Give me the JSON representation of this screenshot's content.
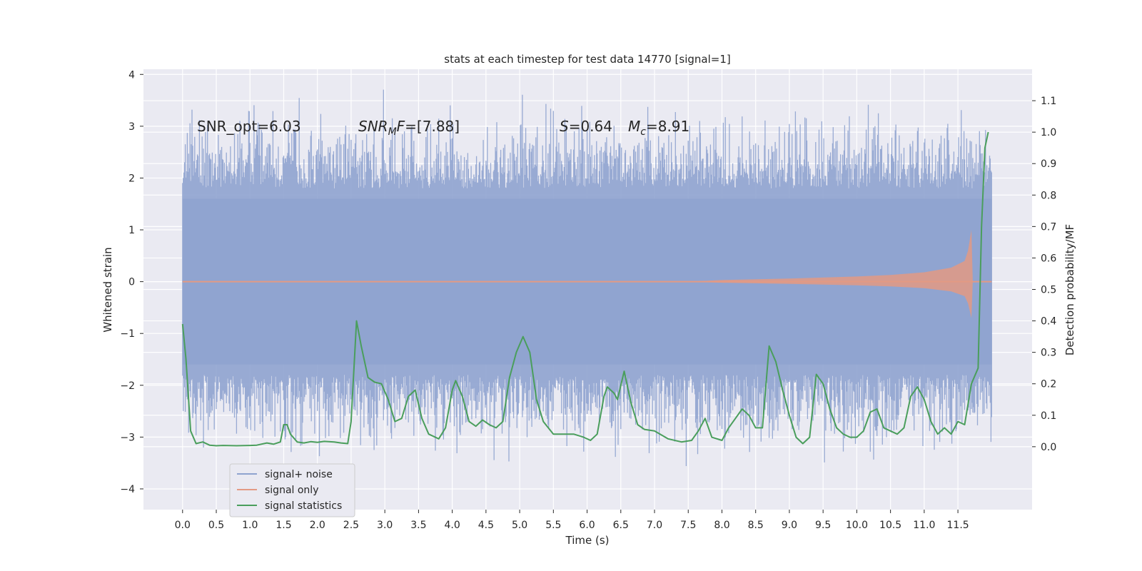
{
  "chart_data": {
    "type": "line",
    "title": "stats at each timestep for test data 14770 [signal=1]",
    "xlabel": "Time (s)",
    "ylabel_left": "Whitened strain",
    "ylabel_right": "Detection probability/MF",
    "xlim": [
      -0.58,
      12.6
    ],
    "ylim_left": [
      -4.4,
      4.1
    ],
    "ylim_right": [
      -0.2,
      1.2
    ],
    "grid": true,
    "legend_position": "lower-left",
    "x_ticks": [
      "0.0",
      "0.5",
      "1.0",
      "1.5",
      "2.0",
      "2.5",
      "3.0",
      "3.5",
      "4.0",
      "4.5",
      "5.0",
      "5.5",
      "6.0",
      "6.5",
      "7.0",
      "7.5",
      "8.0",
      "8.5",
      "9.0",
      "9.5",
      "10.0",
      "10.5",
      "11.0",
      "11.5"
    ],
    "y_left_ticks": [
      "4",
      "3",
      "2",
      "1",
      "0",
      "−1",
      "−2",
      "−3",
      "−4"
    ],
    "y_right_ticks": [
      "1.1",
      "1.0",
      "0.9",
      "0.8",
      "0.7",
      "0.6",
      "0.5",
      "0.4",
      "0.3",
      "0.2",
      "0.1",
      "0.0"
    ],
    "annotations": {
      "snr_opt": "SNR_opt=6.03",
      "snr_mf_symbol": "SNR",
      "snr_mf_sub": "M",
      "snr_mf_tail": "F",
      "snr_mf_value": "=[7.88]",
      "s_symbol": "S",
      "s_value": "=0.64",
      "mc_symbol": "M",
      "mc_sub": "c",
      "mc_value": "=8.91"
    },
    "series": [
      {
        "name": "signal+ noise",
        "color": "#8fa3cf",
        "axis": "left",
        "x_range": [
          0.0,
          12.0
        ],
        "envelope_note_values": {
          "typical_max": 2.2,
          "typical_min": -2.2,
          "peak_max": 3.75,
          "peak_min": -3.8
        }
      },
      {
        "name": "signal only",
        "color": "#e39a84",
        "axis": "left",
        "x_range": [
          0.0,
          12.0
        ],
        "envelope": {
          "t": [
            0.0,
            7.5,
            8.0,
            9.0,
            10.0,
            10.5,
            11.0,
            11.4,
            11.6,
            11.65,
            11.7,
            11.72,
            12.0
          ],
          "amp": [
            0.0,
            0.0,
            0.03,
            0.06,
            0.1,
            0.13,
            0.18,
            0.27,
            0.4,
            0.6,
            1.0,
            0.0,
            0.0
          ]
        }
      },
      {
        "name": "signal statistics",
        "color": "#4a9e5c",
        "axis": "right",
        "x": [
          0.0,
          0.05,
          0.12,
          0.2,
          0.3,
          0.4,
          0.5,
          0.6,
          0.8,
          1.0,
          1.1,
          1.25,
          1.35,
          1.45,
          1.5,
          1.55,
          1.6,
          1.7,
          1.8,
          1.9,
          2.0,
          2.1,
          2.25,
          2.35,
          2.45,
          2.5,
          2.58,
          2.65,
          2.75,
          2.85,
          2.95,
          3.05,
          3.15,
          3.25,
          3.35,
          3.45,
          3.55,
          3.65,
          3.8,
          3.9,
          4.0,
          4.05,
          4.15,
          4.25,
          4.35,
          4.45,
          4.55,
          4.65,
          4.75,
          4.85,
          4.95,
          5.05,
          5.15,
          5.25,
          5.35,
          5.5,
          5.65,
          5.8,
          5.95,
          6.05,
          6.15,
          6.25,
          6.3,
          6.4,
          6.45,
          6.55,
          6.65,
          6.75,
          6.85,
          7.0,
          7.2,
          7.4,
          7.55,
          7.65,
          7.75,
          7.85,
          8.0,
          8.1,
          8.2,
          8.3,
          8.4,
          8.5,
          8.6,
          8.7,
          8.8,
          8.9,
          9.0,
          9.1,
          9.2,
          9.3,
          9.4,
          9.5,
          9.6,
          9.7,
          9.8,
          9.9,
          10.0,
          10.1,
          10.2,
          10.3,
          10.4,
          10.5,
          10.6,
          10.7,
          10.8,
          10.9,
          11.0,
          11.1,
          11.2,
          11.3,
          11.4,
          11.5,
          11.6,
          11.7,
          11.8,
          11.85,
          11.9,
          11.95
        ],
        "y": [
          0.39,
          0.28,
          0.05,
          0.01,
          0.015,
          0.005,
          0.003,
          0.004,
          0.003,
          0.004,
          0.005,
          0.012,
          0.008,
          0.015,
          0.07,
          0.07,
          0.04,
          0.015,
          0.012,
          0.016,
          0.014,
          0.017,
          0.015,
          0.012,
          0.01,
          0.08,
          0.4,
          0.32,
          0.22,
          0.205,
          0.2,
          0.15,
          0.08,
          0.09,
          0.16,
          0.18,
          0.09,
          0.04,
          0.025,
          0.06,
          0.18,
          0.21,
          0.16,
          0.08,
          0.065,
          0.085,
          0.07,
          0.06,
          0.08,
          0.22,
          0.3,
          0.35,
          0.3,
          0.15,
          0.08,
          0.04,
          0.04,
          0.04,
          0.03,
          0.02,
          0.04,
          0.16,
          0.19,
          0.17,
          0.15,
          0.24,
          0.14,
          0.07,
          0.055,
          0.05,
          0.025,
          0.015,
          0.02,
          0.05,
          0.09,
          0.03,
          0.02,
          0.06,
          0.09,
          0.12,
          0.1,
          0.06,
          0.06,
          0.32,
          0.27,
          0.18,
          0.1,
          0.03,
          0.01,
          0.03,
          0.23,
          0.2,
          0.12,
          0.06,
          0.04,
          0.03,
          0.03,
          0.05,
          0.11,
          0.12,
          0.06,
          0.05,
          0.04,
          0.06,
          0.16,
          0.19,
          0.15,
          0.08,
          0.04,
          0.06,
          0.04,
          0.08,
          0.07,
          0.2,
          0.25,
          0.7,
          0.95,
          1.0
        ]
      }
    ]
  }
}
